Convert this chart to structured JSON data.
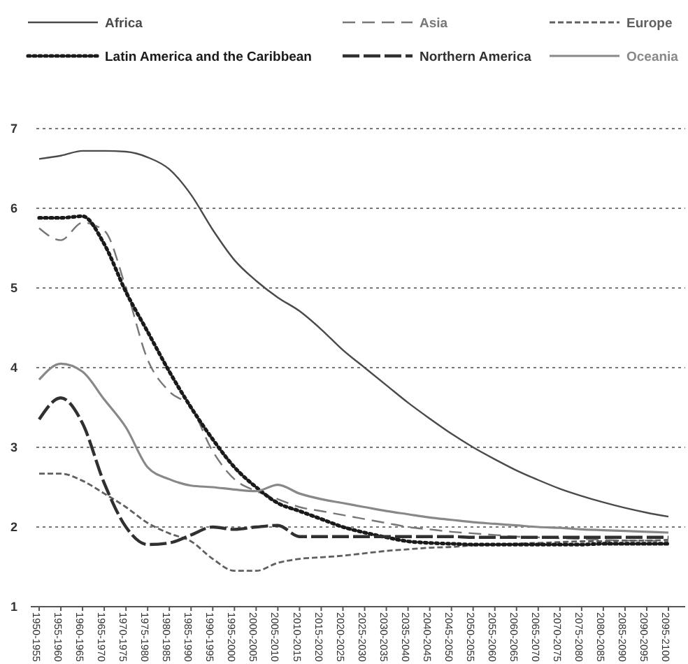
{
  "chart_data": {
    "type": "line",
    "categories": [
      "1950-1955",
      "1955-1960",
      "1960-1965",
      "1965-1970",
      "1970-1975",
      "1975-1980",
      "1980-1985",
      "1985-1990",
      "1990-1995",
      "1995-2000",
      "2000-2005",
      "2005-2010",
      "2010-2015",
      "2015-2020",
      "2020-2025",
      "2025-2030",
      "2030-2035",
      "2035-2040",
      "2040-2045",
      "2045-2050",
      "2050-2055",
      "2055-2060",
      "2060-2065",
      "2065-2070",
      "2070-2075",
      "2075-2080",
      "2080-2085",
      "2085-2090",
      "2090-2095",
      "2095-2100"
    ],
    "series": [
      {
        "name": "Africa",
        "color": "#4a4a4a",
        "line_style": "solid",
        "values": [
          6.62,
          6.66,
          6.72,
          6.72,
          6.71,
          6.64,
          6.49,
          6.17,
          5.73,
          5.35,
          5.09,
          4.88,
          4.71,
          4.48,
          4.22,
          4.0,
          3.78,
          3.56,
          3.36,
          3.17,
          3.0,
          2.85,
          2.71,
          2.59,
          2.48,
          2.39,
          2.31,
          2.24,
          2.18,
          2.13
        ]
      },
      {
        "name": "Asia",
        "color": "#777777",
        "line_style": "dashed",
        "values": [
          5.75,
          5.6,
          5.82,
          5.72,
          5.0,
          4.1,
          3.7,
          3.5,
          2.95,
          2.6,
          2.45,
          2.35,
          2.25,
          2.2,
          2.15,
          2.1,
          2.05,
          2.0,
          1.97,
          1.94,
          1.92,
          1.9,
          1.88,
          1.87,
          1.86,
          1.85,
          1.84,
          1.83,
          1.83,
          1.82
        ]
      },
      {
        "name": "Europe",
        "color": "#606060",
        "line_style": "dashed",
        "values": [
          2.67,
          2.67,
          2.58,
          2.42,
          2.25,
          2.05,
          1.92,
          1.82,
          1.6,
          1.45,
          1.45,
          1.55,
          1.6,
          1.62,
          1.64,
          1.67,
          1.7,
          1.72,
          1.74,
          1.75,
          1.77,
          1.78,
          1.79,
          1.8,
          1.81,
          1.82,
          1.82,
          1.83,
          1.83,
          1.84
        ]
      },
      {
        "name": "Latin America and the Caribbean",
        "color": "#1a1a1a",
        "line_style": "dotted",
        "values": [
          5.88,
          5.88,
          5.9,
          5.55,
          4.95,
          4.45,
          3.95,
          3.5,
          3.1,
          2.75,
          2.5,
          2.3,
          2.2,
          2.1,
          2.0,
          1.93,
          1.87,
          1.82,
          1.8,
          1.79,
          1.78,
          1.78,
          1.78,
          1.78,
          1.78,
          1.78,
          1.79,
          1.79,
          1.79,
          1.79
        ]
      },
      {
        "name": "Northern America",
        "color": "#303030",
        "line_style": "dashed",
        "values": [
          3.35,
          3.62,
          3.3,
          2.55,
          2.0,
          1.78,
          1.8,
          1.9,
          2.0,
          1.97,
          2.0,
          2.02,
          1.88,
          1.88,
          1.88,
          1.88,
          1.88,
          1.88,
          1.88,
          1.88,
          1.87,
          1.87,
          1.87,
          1.87,
          1.87,
          1.87,
          1.87,
          1.87,
          1.87,
          1.87
        ]
      },
      {
        "name": "Oceania",
        "color": "#888888",
        "line_style": "solid",
        "values": [
          3.85,
          4.05,
          3.95,
          3.6,
          3.25,
          2.75,
          2.6,
          2.52,
          2.5,
          2.47,
          2.45,
          2.53,
          2.42,
          2.35,
          2.3,
          2.25,
          2.2,
          2.16,
          2.12,
          2.09,
          2.06,
          2.04,
          2.02,
          2.0,
          1.99,
          1.97,
          1.96,
          1.95,
          1.94,
          1.93
        ]
      }
    ],
    "ylim": [
      1,
      7
    ],
    "yticks": [
      1,
      2,
      3,
      4,
      5,
      6,
      7
    ],
    "grid": "y",
    "legend": "top"
  }
}
